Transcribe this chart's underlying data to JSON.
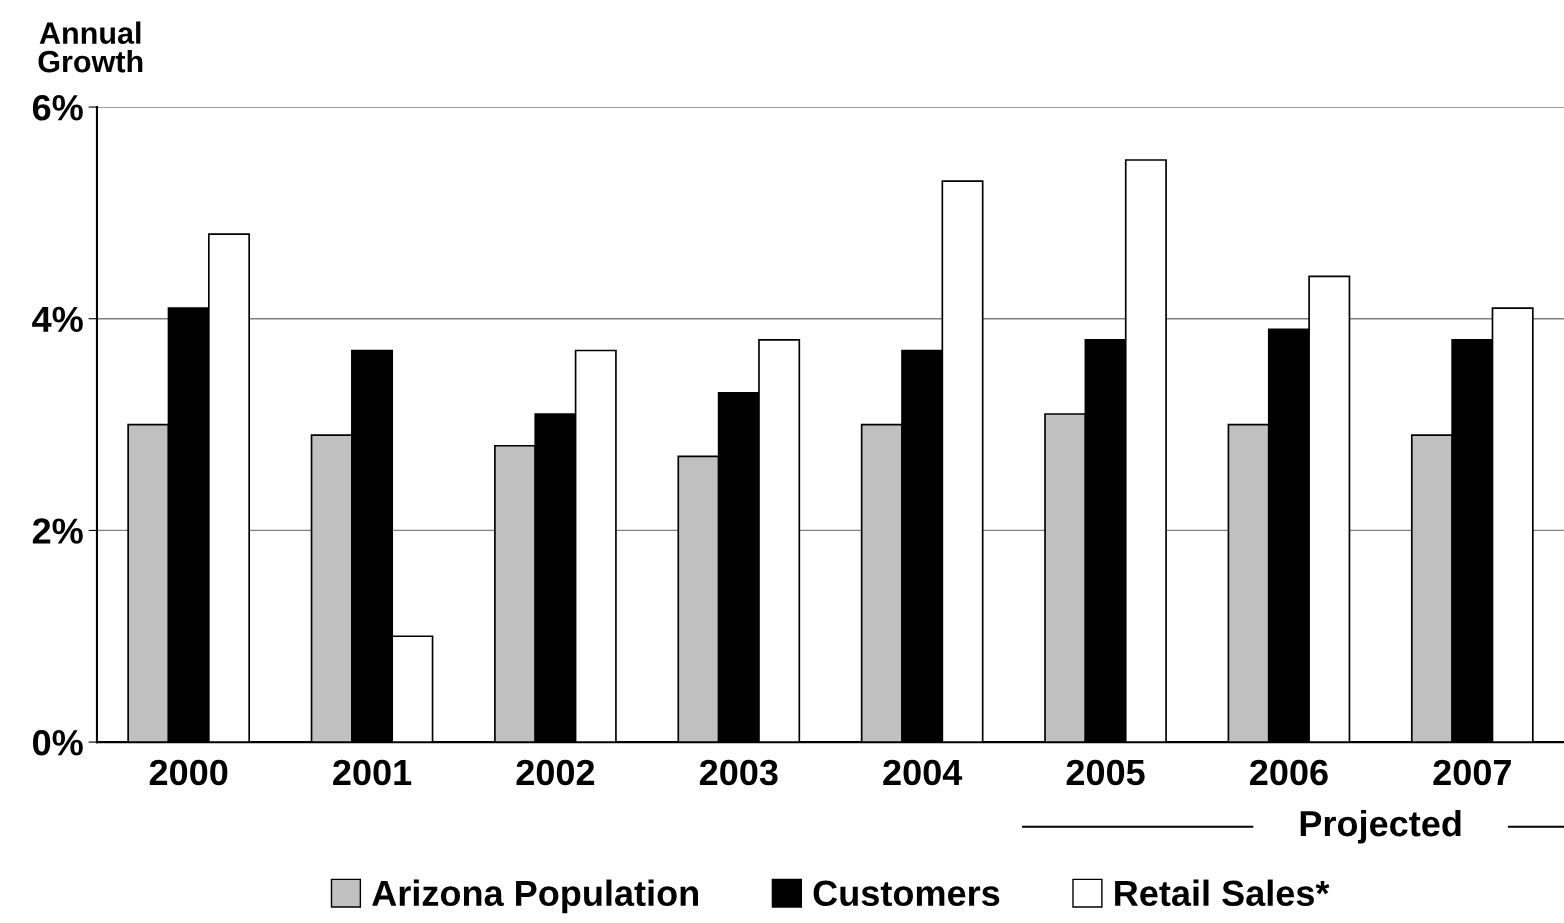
{
  "chart_data": {
    "type": "bar",
    "ylabel": "Annual\nGrowth",
    "categories": [
      "2000",
      "2001",
      "2002",
      "2003",
      "2004",
      "2005",
      "2006",
      "2007"
    ],
    "series": [
      {
        "name": "Arizona Population",
        "color": "#c0c0c0",
        "values": [
          3.0,
          2.9,
          2.8,
          2.7,
          3.0,
          3.1,
          3.0,
          2.9
        ]
      },
      {
        "name": "Customers",
        "color": "#000000",
        "values": [
          4.1,
          3.7,
          3.1,
          3.3,
          3.7,
          3.8,
          3.9,
          3.8
        ]
      },
      {
        "name": "Retail Sales*",
        "color": "#ffffff",
        "values": [
          4.8,
          1.0,
          3.7,
          3.8,
          5.3,
          5.5,
          4.4,
          4.1
        ]
      }
    ],
    "ylim": [
      0,
      6
    ],
    "yticks": [
      {
        "value": 0,
        "label": "0%"
      },
      {
        "value": 2,
        "label": "2%"
      },
      {
        "value": 4,
        "label": "4%"
      },
      {
        "value": 6,
        "label": "6%"
      }
    ],
    "grid": "y",
    "legend": "bottom",
    "annotations": [
      "Projected"
    ]
  }
}
